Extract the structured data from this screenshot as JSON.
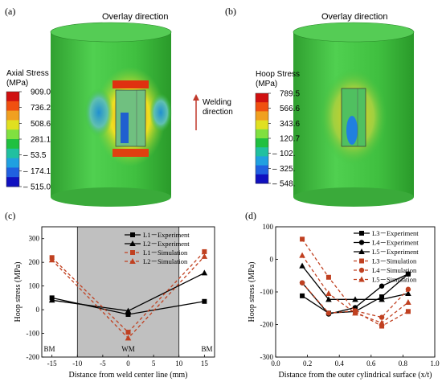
{
  "panels": {
    "a": {
      "label": "(a)",
      "arrow_label": "Overlay direction",
      "welding_label_1": "Welding",
      "welding_label_2": "direction",
      "legend_title_1": "Axial Stress",
      "legend_title_2": "(MPa)",
      "legend_ticks": [
        "909.0",
        "736.2",
        "508.6",
        "281.1",
        "53.5",
        "174.1",
        "515.0"
      ],
      "legend_signs": [
        "",
        "",
        "",
        "",
        "–",
        "–",
        "–"
      ]
    },
    "b": {
      "label": "(b)",
      "arrow_label": "Overlay direction",
      "legend_title_1": "Hoop Stress",
      "legend_title_2": "(MPa)",
      "legend_ticks": [
        "789.5",
        "566.6",
        "343.6",
        "120.7",
        "102.",
        "325.",
        "548."
      ],
      "legend_signs": [
        "",
        "",
        "",
        "",
        "–",
        "–",
        "–"
      ]
    }
  },
  "colors": {
    "cylinder_green": "#40c040",
    "legend_scale": [
      "#d01010",
      "#f05010",
      "#f0a020",
      "#e0e020",
      "#80e040",
      "#20c040",
      "#20c0a0",
      "#20a0e0",
      "#2060e0",
      "#1010c0"
    ],
    "experiment": "#000000",
    "simulation": "#c04020",
    "wm_band": "#c0c0c0",
    "arrow_red": "#c0392b"
  },
  "chart_data": [
    {
      "panel": "(c)",
      "type": "line",
      "xlabel": "Distance from weld center line (mm)",
      "ylabel": "Hoop stress (MPa)",
      "xlim": [
        -17,
        17
      ],
      "ylim": [
        -200,
        350
      ],
      "xticks": [
        -15,
        -10,
        -5,
        0,
        5,
        10,
        15
      ],
      "yticks": [
        -200,
        -100,
        0,
        100,
        200,
        300
      ],
      "shaded_region": [
        -10,
        10
      ],
      "region_labels": [
        {
          "text": "BM",
          "x": -15.5
        },
        {
          "text": "WM",
          "x": 0
        },
        {
          "text": "BM",
          "x": 15.5
        }
      ],
      "legend_position": "top-right",
      "series": [
        {
          "name": "L1－Experiment",
          "style": "solid",
          "marker": "square",
          "color": "#000000",
          "x": [
            -15,
            0,
            15
          ],
          "y": [
            50,
            -20,
            35
          ]
        },
        {
          "name": "L2－Experiment",
          "style": "solid",
          "marker": "triangle",
          "color": "#000000",
          "x": [
            -15,
            0,
            15
          ],
          "y": [
            40,
            -5,
            155
          ]
        },
        {
          "name": "L1－Simulation",
          "style": "dashed",
          "marker": "square",
          "color": "#c04020",
          "x": [
            -15,
            0,
            15
          ],
          "y": [
            220,
            -95,
            245
          ]
        },
        {
          "name": "L2－Simulation",
          "style": "dashed",
          "marker": "triangle",
          "color": "#c04020",
          "x": [
            -15,
            0,
            15
          ],
          "y": [
            210,
            -120,
            225
          ]
        }
      ]
    },
    {
      "panel": "(d)",
      "type": "line",
      "xlabel": "Distance from the outer cylindrical surface (x/t)",
      "ylabel": "Hoop stress (MPa)",
      "xlim": [
        0.0,
        1.0
      ],
      "ylim": [
        -300,
        100
      ],
      "xticks": [
        0.0,
        0.2,
        0.4,
        0.6,
        0.8,
        1.0
      ],
      "yticks": [
        -300,
        -200,
        -100,
        0,
        100
      ],
      "legend_position": "top-right",
      "series": [
        {
          "name": "L3－Experiment",
          "style": "solid",
          "marker": "square",
          "color": "#000000",
          "x": [
            0.167,
            0.333,
            0.5,
            0.667,
            0.833
          ],
          "y": [
            -112,
            -165,
            -160,
            -115,
            -45
          ]
        },
        {
          "name": "L4－Experiment",
          "style": "solid",
          "marker": "circle",
          "color": "#000000",
          "x": [
            0.167,
            0.333,
            0.5,
            0.667,
            0.833
          ],
          "y": [
            -72,
            -168,
            -148,
            -82,
            -45
          ]
        },
        {
          "name": "L5－Experiment",
          "style": "solid",
          "marker": "triangle",
          "color": "#000000",
          "x": [
            0.167,
            0.333,
            0.5,
            0.667,
            0.833
          ],
          "y": [
            -20,
            -123,
            -123,
            -123,
            -105
          ]
        },
        {
          "name": "L3－Simulation",
          "style": "dashed",
          "marker": "square",
          "color": "#c04020",
          "x": [
            0.167,
            0.333,
            0.5,
            0.667,
            0.833
          ],
          "y": [
            62,
            -55,
            -160,
            -205,
            -160
          ]
        },
        {
          "name": "L4－Simulation",
          "style": "dashed",
          "marker": "circle",
          "color": "#c04020",
          "x": [
            0.167,
            0.333,
            0.5,
            0.667,
            0.833
          ],
          "y": [
            -72,
            -165,
            -158,
            -178,
            -92
          ]
        },
        {
          "name": "L5－Simulation",
          "style": "dashed",
          "marker": "triangle",
          "color": "#c04020",
          "x": [
            0.167,
            0.333,
            0.5,
            0.667,
            0.833
          ],
          "y": [
            12,
            -105,
            -165,
            -195,
            -132
          ]
        }
      ]
    }
  ]
}
